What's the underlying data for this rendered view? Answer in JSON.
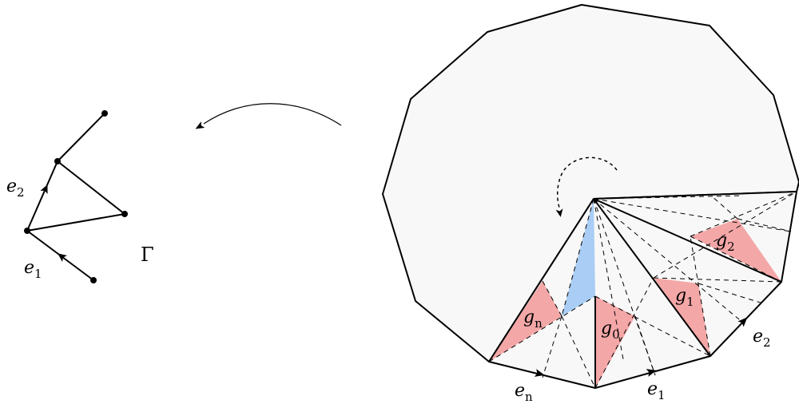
{
  "graph": {
    "name": "Γ",
    "edge_labels": [
      {
        "main": "e",
        "sub": "1"
      },
      {
        "main": "e",
        "sub": "2"
      }
    ]
  },
  "polygon": {
    "triangle_labels": [
      {
        "main": "g",
        "sub": "n"
      },
      {
        "main": "g",
        "sub": "0"
      },
      {
        "main": "g",
        "sub": "1"
      },
      {
        "main": "g",
        "sub": "2"
      }
    ],
    "boundary_labels": [
      {
        "main": "e",
        "sub": "n"
      },
      {
        "main": "e",
        "sub": "1"
      },
      {
        "main": "e",
        "sub": "2"
      }
    ],
    "colors": {
      "fill": "#f8f8f8",
      "red_triangle": "#f4a7a7",
      "blue_triangle": "#a9cdf5"
    }
  }
}
